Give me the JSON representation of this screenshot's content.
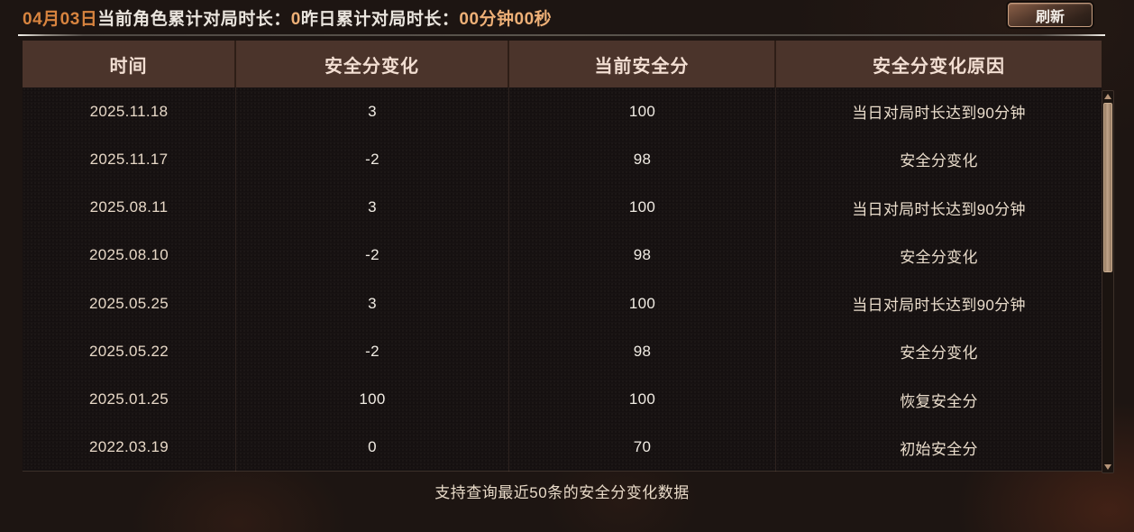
{
  "topbar": {
    "date": "04月03日",
    "today_label": "当前角色累计对局时长：",
    "today_value": "0",
    "yesterday_label": "昨日累计对局时长：",
    "yesterday_value": "00分钟00秒",
    "refresh_label": "刷新"
  },
  "table": {
    "columns": [
      "时间",
      "安全分变化",
      "当前安全分",
      "安全分变化原因"
    ],
    "rows": [
      [
        "2025.11.18",
        "3",
        "100",
        "当日对局时长达到90分钟"
      ],
      [
        "2025.11.17",
        "-2",
        "98",
        "安全分变化"
      ],
      [
        "2025.08.11",
        "3",
        "100",
        "当日对局时长达到90分钟"
      ],
      [
        "2025.08.10",
        "-2",
        "98",
        "安全分变化"
      ],
      [
        "2025.05.25",
        "3",
        "100",
        "当日对局时长达到90分钟"
      ],
      [
        "2025.05.22",
        "-2",
        "98",
        "安全分变化"
      ],
      [
        "2025.01.25",
        "100",
        "100",
        "恢复安全分"
      ],
      [
        "2022.03.19",
        "0",
        "70",
        "初始安全分"
      ]
    ]
  },
  "footer": {
    "note": "支持查询最近50条的安全分变化数据"
  },
  "colors": {
    "accent_orange": "#d8843f",
    "value_orange": "#eeb077",
    "header_bg": "#4b342b",
    "body_bg": "#151010",
    "scroll_thumb": "#b59478"
  }
}
